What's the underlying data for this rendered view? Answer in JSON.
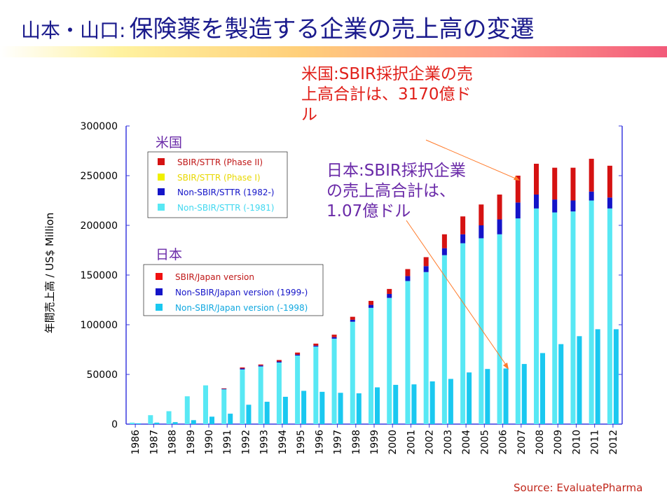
{
  "title": {
    "prefix": "山本・山口:",
    "main": "保険薬を製造する企業の売上高の変遷"
  },
  "annotations": {
    "us": "米国:SBIR採択企業の売上高合計は、3170億ドル",
    "jp": "日本:SBIR採択企業の売上高合計は、1.07億ドル"
  },
  "legend_us": {
    "heading": "米国",
    "items": [
      "SBIR/STTR (Phase II)",
      "SBIR/STTR (Phase I)",
      "Non-SBIR/STTR (1982-)",
      "Non-SBIR/STTR (-1981)"
    ]
  },
  "legend_jp": {
    "heading": "日本",
    "items": [
      "SBIR/Japan version",
      "Non-SBIR/Japan version (1999-)",
      "Non-SBIR/Japan version (-1998)"
    ]
  },
  "source": "Source:  EvaluatePharma",
  "colors": {
    "phase2": "#d51212",
    "phase1": "#f0f000",
    "nonsbir_new": "#1414c8",
    "nonsbir_old": "#58e8f4",
    "jp_sbir": "#f01010",
    "jp_new": "#1414c8",
    "jp_old": "#1ac8f0",
    "axis": "#3a3adf",
    "arrow": "#ff7a2a"
  },
  "chart_data": {
    "type": "bar",
    "ylabel": "年間売上高 / US$ Million",
    "ylim": [
      0,
      300000
    ],
    "yticks": [
      "0",
      "50000",
      "100000",
      "150000",
      "200000",
      "250000",
      "300000"
    ],
    "categories": [
      "1986",
      "1987",
      "1988",
      "1989",
      "1990",
      "1991",
      "1992",
      "1993",
      "1994",
      "1995",
      "1996",
      "1997",
      "1998",
      "1999",
      "2000",
      "2001",
      "2002",
      "2003",
      "2004",
      "2005",
      "2006",
      "2007",
      "2008",
      "2009",
      "2010",
      "2011",
      "2012"
    ],
    "us_series": [
      {
        "name": "Non-SBIR/STTR (-1981)",
        "values": [
          1500,
          9000,
          13000,
          28000,
          39000,
          35000,
          55000,
          58000,
          62000,
          69000,
          78000,
          86000,
          103000,
          117000,
          127000,
          144000,
          153000,
          170000,
          182000,
          187000,
          191000,
          207000,
          217000,
          213000,
          214000,
          225000,
          217000
        ]
      },
      {
        "name": "Non-SBIR/STTR (1982-)",
        "values": [
          0,
          0,
          0,
          0,
          0,
          500,
          1000,
          1000,
          1000,
          1000,
          1000,
          1500,
          2000,
          3000,
          4000,
          5000,
          6000,
          7000,
          9000,
          13000,
          15000,
          16000,
          14000,
          13000,
          11000,
          9000,
          11000
        ]
      },
      {
        "name": "SBIR/STTR (Phase I)",
        "values": [
          0,
          0,
          0,
          0,
          0,
          0,
          0,
          0,
          0,
          0,
          0,
          0,
          0,
          0,
          0,
          0,
          0,
          0,
          0,
          0,
          0,
          0,
          0,
          0,
          0,
          0,
          0
        ]
      },
      {
        "name": "SBIR/STTR (Phase II)",
        "values": [
          0,
          0,
          0,
          0,
          0,
          500,
          1000,
          1000,
          1500,
          2000,
          2000,
          2500,
          3000,
          4000,
          5000,
          7000,
          9000,
          14000,
          18000,
          21000,
          25000,
          27000,
          31000,
          32000,
          33000,
          33000,
          32000
        ]
      }
    ],
    "jp_series": [
      {
        "name": "Non-SBIR/Japan version (-1998)",
        "values": [
          800,
          1500,
          2000,
          4000,
          7500,
          10500,
          19500,
          22500,
          27500,
          33500,
          32500,
          31500,
          31000,
          37000,
          39500,
          40000,
          43000,
          45500,
          52000,
          55500,
          56000,
          60500,
          71500,
          80500,
          88500,
          95500,
          95500
        ]
      },
      {
        "name": "Non-SBIR/Japan version (1999-)",
        "values": [
          0,
          0,
          0,
          0,
          0,
          0,
          0,
          0,
          0,
          0,
          0,
          0,
          0,
          0,
          0,
          0,
          0,
          0,
          0,
          0,
          0,
          0,
          0,
          0,
          0,
          0,
          0
        ]
      },
      {
        "name": "SBIR/Japan version",
        "values": [
          0,
          0,
          0,
          0,
          0,
          0,
          0,
          0,
          0,
          0,
          0,
          0,
          0,
          0,
          0,
          0,
          0,
          0,
          0,
          0,
          0,
          0,
          0,
          0,
          0,
          0,
          0
        ]
      }
    ]
  }
}
